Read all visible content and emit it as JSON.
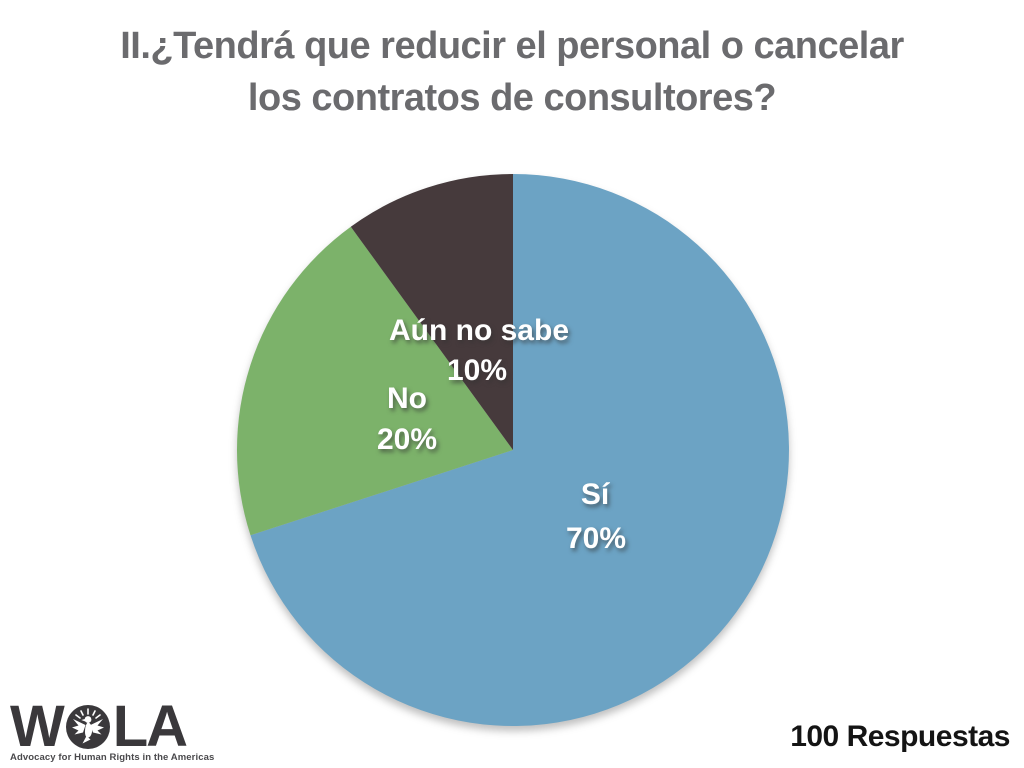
{
  "slide": {
    "title_lines": [
      "II.¿Tendrá que reducir el personal o cancelar",
      "los contratos de consultores?"
    ],
    "footer_right": "100 Respuestas"
  },
  "logo": {
    "word_left": "W",
    "word_right": "LA",
    "tagline": "Advocacy for Human Rights in the Americas"
  },
  "colors": {
    "title_gray": "#6b6b6e",
    "footer_black": "#141414",
    "logo_charcoal": "#3a383b",
    "label_white": "#ffffff"
  },
  "chart_data": {
    "type": "pie",
    "title": "II.¿Tendrá que reducir el personal o cancelar los contratos de consultores?",
    "total_label": "100 Respuestas",
    "start_angle_deg": 0,
    "direction": "clockwise",
    "legend_position": "labels-inside-slices",
    "slices": [
      {
        "label": "Sí",
        "value": 70,
        "percent_label": "70%",
        "color": "#6ca3c4"
      },
      {
        "label": "No",
        "value": 20,
        "percent_label": "20%",
        "color": "#7cb26a"
      },
      {
        "label": "Aún no sabe",
        "value": 10,
        "percent_label": "10%",
        "color": "#463a3c"
      }
    ]
  }
}
